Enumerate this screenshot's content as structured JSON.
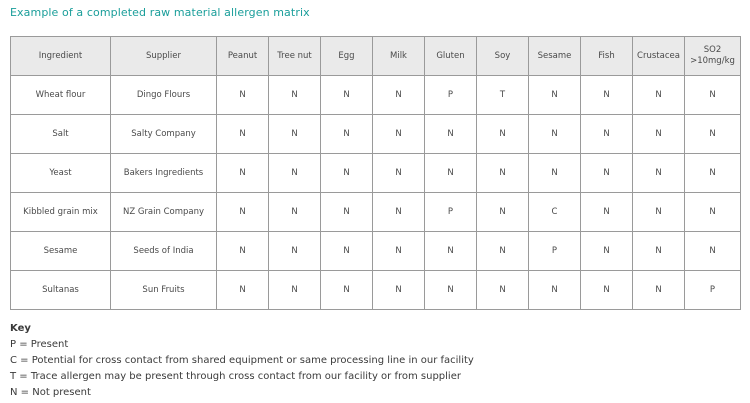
{
  "title": "Example of a completed raw material allergen matrix",
  "table": {
    "headers": [
      "Ingredient",
      "Supplier",
      "Peanut",
      "Tree nut",
      "Egg",
      "Milk",
      "Gluten",
      "Soy",
      "Sesame",
      "Fish",
      "Crustacea"
    ],
    "so2_header": [
      "SO2",
      ">10mg/kg"
    ],
    "rows": [
      [
        "Wheat flour",
        "Dingo Flours",
        "N",
        "N",
        "N",
        "N",
        "P",
        "T",
        "N",
        "N",
        "N",
        "N"
      ],
      [
        "Salt",
        "Salty Company",
        "N",
        "N",
        "N",
        "N",
        "N",
        "N",
        "N",
        "N",
        "N",
        "N"
      ],
      [
        "Yeast",
        "Bakers Ingredients",
        "N",
        "N",
        "N",
        "N",
        "N",
        "N",
        "N",
        "N",
        "N",
        "N"
      ],
      [
        "Kibbled grain mix",
        "NZ Grain Company",
        "N",
        "N",
        "N",
        "N",
        "P",
        "N",
        "C",
        "N",
        "N",
        "N"
      ],
      [
        "Sesame",
        "Seeds of India",
        "N",
        "N",
        "N",
        "N",
        "N",
        "N",
        "P",
        "N",
        "N",
        "N"
      ],
      [
        "Sultanas",
        "Sun Fruits",
        "N",
        "N",
        "N",
        "N",
        "N",
        "N",
        "N",
        "N",
        "N",
        "P"
      ]
    ]
  },
  "key": {
    "title": "Key",
    "items": [
      "P = Present",
      "C = Potential for cross contact from shared equipment or same processing line in our facility",
      "T = Trace allergen may be present through cross contact from our facility or from supplier",
      "N = Not present"
    ]
  }
}
